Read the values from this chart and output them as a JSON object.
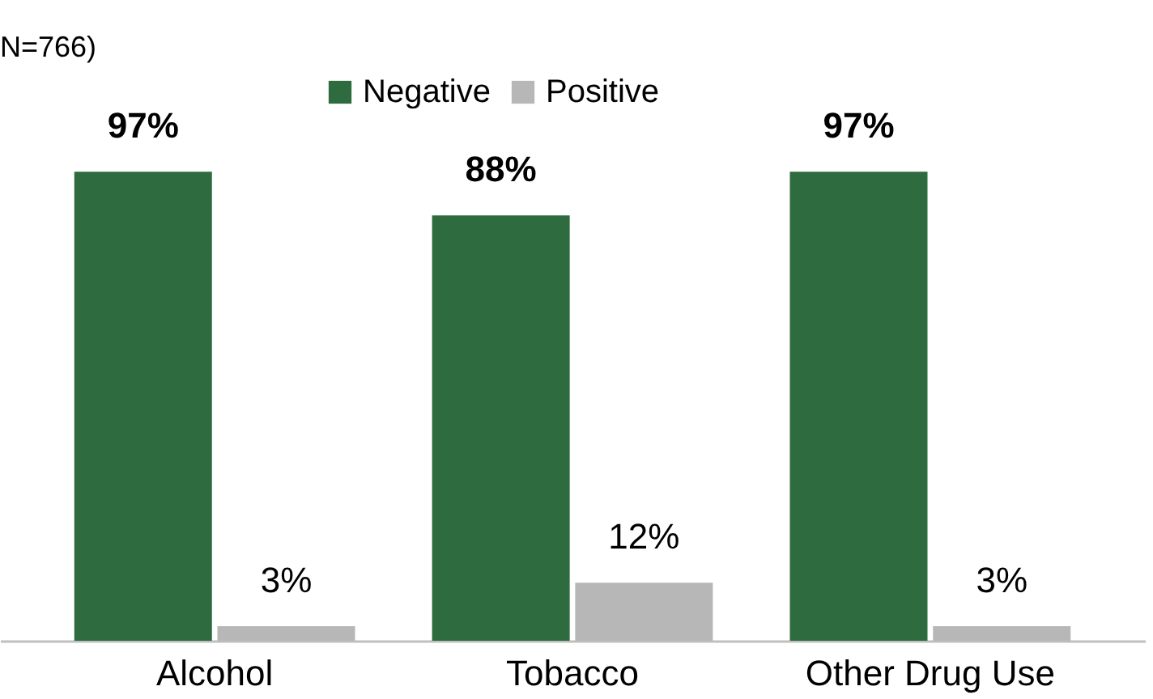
{
  "chart_data": {
    "type": "bar",
    "categories": [
      "Alcohol",
      "Tobacco",
      "Other Drug Use"
    ],
    "series": [
      {
        "name": "Negative",
        "color": "#2e6b3e",
        "values": [
          97,
          88,
          97
        ],
        "value_labels": [
          "97%",
          "88%",
          "97%"
        ]
      },
      {
        "name": "Positive",
        "color": "#b7b7b7",
        "values": [
          3,
          12,
          3
        ],
        "value_labels": [
          "3%",
          "12%",
          "3%"
        ]
      }
    ],
    "legend": "top",
    "annotations": [
      "N=766)"
    ]
  }
}
